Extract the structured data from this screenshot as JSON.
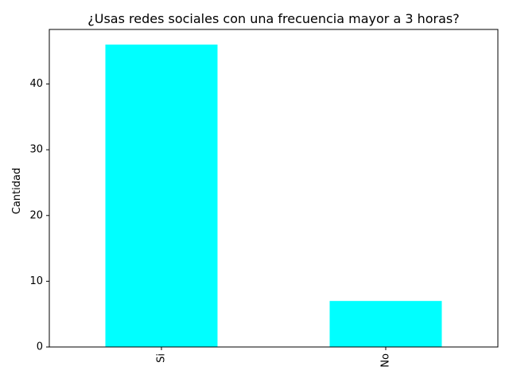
{
  "chart_data": {
    "type": "bar",
    "title": "¿Usas redes sociales con una frecuencia mayor a 3 horas?",
    "xlabel": "",
    "ylabel": "Cantidad",
    "categories": [
      "Si",
      "No"
    ],
    "values": [
      46,
      7
    ],
    "ylim": [
      0,
      48.3
    ],
    "yticks": [
      0,
      10,
      20,
      30,
      40
    ],
    "bar_color": "#00ffff",
    "grid": false,
    "legend": "none"
  }
}
